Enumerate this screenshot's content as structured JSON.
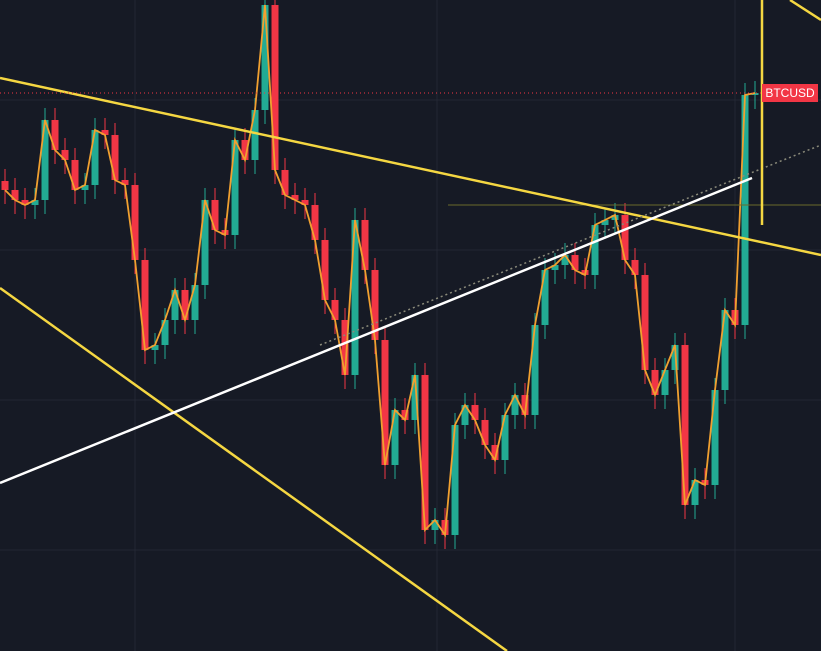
{
  "chart_data": {
    "type": "candlestick",
    "symbol": "BTCUSD",
    "ylim": [
      0,
      651
    ],
    "colors": {
      "up": "#22ab94",
      "down": "#f23645"
    },
    "open": [
      470,
      461,
      451,
      446,
      451,
      531,
      501,
      491,
      461,
      466,
      521,
      516,
      471,
      466,
      391,
      301,
      306,
      331,
      361,
      331,
      366,
      451,
      421,
      416,
      511,
      491,
      541,
      646,
      481,
      456,
      451,
      446,
      411,
      351,
      331,
      276,
      431,
      381,
      311,
      186,
      241,
      231,
      276,
      121,
      131,
      116,
      226,
      246,
      231,
      206,
      191,
      236,
      256,
      236,
      326,
      381,
      386,
      396,
      381,
      376,
      426,
      431,
      436,
      391,
      376,
      281,
      256,
      281,
      306,
      146,
      171,
      166,
      261,
      341,
      326,
      556
    ],
    "high": [
      482,
      473,
      463,
      463,
      543,
      543,
      513,
      503,
      478,
      533,
      533,
      528,
      483,
      478,
      403,
      318,
      343,
      373,
      373,
      378,
      463,
      463,
      433,
      523,
      523,
      553,
      651,
      651,
      493,
      468,
      463,
      458,
      423,
      363,
      343,
      443,
      443,
      393,
      323,
      253,
      253,
      288,
      288,
      143,
      143,
      238,
      258,
      258,
      243,
      218,
      248,
      268,
      268,
      338,
      393,
      398,
      408,
      408,
      393,
      438,
      443,
      448,
      448,
      403,
      388,
      293,
      293,
      318,
      318,
      183,
      183,
      273,
      353,
      353,
      568,
      570
    ],
    "low": [
      447,
      437,
      432,
      432,
      437,
      487,
      477,
      447,
      447,
      452,
      502,
      457,
      452,
      377,
      287,
      287,
      292,
      317,
      317,
      317,
      352,
      407,
      402,
      402,
      477,
      477,
      527,
      467,
      442,
      437,
      432,
      397,
      337,
      317,
      262,
      262,
      367,
      297,
      172,
      172,
      217,
      217,
      107,
      107,
      102,
      102,
      212,
      217,
      192,
      177,
      177,
      222,
      222,
      222,
      312,
      367,
      372,
      367,
      362,
      362,
      412,
      417,
      377,
      362,
      267,
      242,
      242,
      267,
      132,
      132,
      152,
      152,
      247,
      312,
      312,
      542
    ],
    "close": [
      461,
      451,
      446,
      451,
      531,
      501,
      491,
      461,
      466,
      521,
      516,
      471,
      466,
      391,
      301,
      306,
      331,
      361,
      331,
      366,
      451,
      421,
      416,
      511,
      491,
      541,
      646,
      481,
      456,
      451,
      446,
      411,
      351,
      331,
      276,
      431,
      381,
      311,
      186,
      241,
      231,
      276,
      121,
      131,
      116,
      226,
      246,
      231,
      206,
      191,
      236,
      256,
      236,
      326,
      381,
      386,
      396,
      381,
      376,
      426,
      431,
      436,
      391,
      376,
      281,
      256,
      281,
      306,
      146,
      171,
      166,
      261,
      341,
      326,
      556,
      558
    ]
  }
}
